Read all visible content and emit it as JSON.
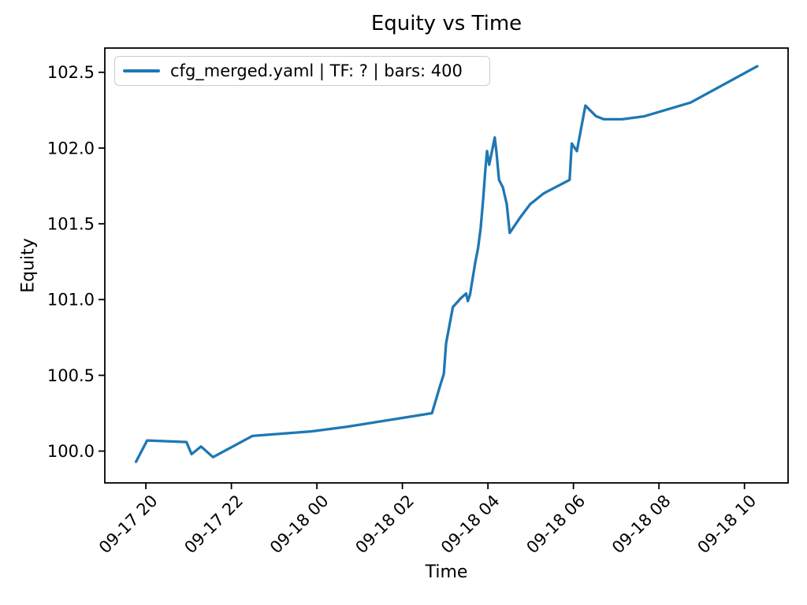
{
  "chart_data": {
    "type": "line",
    "title": "Equity vs Time",
    "xlabel": "Time",
    "ylabel": "Equity",
    "legend": [
      "cfg_merged.yaml | TF: ? | bars: 400"
    ],
    "legend_position": "upper left",
    "grid": false,
    "line_color": "#1f77b4",
    "spine_color": "#000000",
    "text_color": "#000000",
    "x_ticks": [
      "09-17 20",
      "09-17 22",
      "09-18 00",
      "09-18 02",
      "09-18 04",
      "09-18 06",
      "09-18 08",
      "09-18 10"
    ],
    "x_tick_hours": [
      0,
      2,
      4,
      6,
      8,
      10,
      12,
      14
    ],
    "y_ticks": [
      100.0,
      100.5,
      101.0,
      101.5,
      102.0,
      102.5
    ],
    "xlim_hours": [
      -0.96,
      15.02
    ],
    "ylim": [
      99.79,
      102.66
    ],
    "x_axis_note": "hours measured from 09-17 20:00",
    "series": [
      {
        "name": "cfg_merged.yaml | TF: ? | bars: 400",
        "x_hours": [
          -0.23,
          0.03,
          0.95,
          1.07,
          1.29,
          1.57,
          2.49,
          3.87,
          4.7,
          6.69,
          6.88,
          6.97,
          7.02,
          7.18,
          7.37,
          7.49,
          7.53,
          7.58,
          7.7,
          7.77,
          7.83,
          7.89,
          7.94,
          7.98,
          8.03,
          8.16,
          8.2,
          8.26,
          8.35,
          8.44,
          8.51,
          8.75,
          8.99,
          9.08,
          9.3,
          9.91,
          9.96,
          10.08,
          10.28,
          10.53,
          10.71,
          11.14,
          11.66,
          12.74,
          14.3
        ],
        "x_times": [
          "09-17 19:46",
          "09-17 20:02",
          "09-17 20:57",
          "09-17 21:04",
          "09-17 21:17",
          "09-17 21:34",
          "09-17 22:29",
          "09-17 23:52",
          "09-18 00:42",
          "09-18 02:41",
          "09-18 02:53",
          "09-18 02:58",
          "09-18 03:01",
          "09-18 03:11",
          "09-18 03:22",
          "09-18 03:29",
          "09-18 03:32",
          "09-18 03:35",
          "09-18 03:42",
          "09-18 03:46",
          "09-18 03:50",
          "09-18 03:53",
          "09-18 03:56",
          "09-18 03:59",
          "09-18 04:02",
          "09-18 04:10",
          "09-18 04:12",
          "09-18 04:16",
          "09-18 04:21",
          "09-18 04:26",
          "09-18 04:31",
          "09-18 04:45",
          "09-18 04:59",
          "09-18 05:05",
          "09-18 05:18",
          "09-18 05:55",
          "09-18 05:58",
          "09-18 06:05",
          "09-18 06:17",
          "09-18 06:32",
          "09-18 06:43",
          "09-18 07:08",
          "09-18 07:40",
          "09-18 08:44",
          "09-18 10:18"
        ],
        "equity": [
          99.93,
          100.07,
          100.06,
          99.98,
          100.03,
          99.96,
          100.1,
          100.13,
          100.16,
          100.25,
          100.43,
          100.51,
          100.71,
          100.95,
          101.01,
          101.04,
          100.99,
          101.03,
          101.24,
          101.34,
          101.47,
          101.67,
          101.86,
          101.98,
          101.89,
          102.07,
          101.97,
          101.79,
          101.74,
          101.63,
          101.44,
          101.54,
          101.63,
          101.65,
          101.7,
          101.79,
          102.03,
          101.98,
          102.28,
          102.21,
          102.19,
          102.19,
          102.21,
          102.3,
          102.54
        ]
      }
    ]
  }
}
